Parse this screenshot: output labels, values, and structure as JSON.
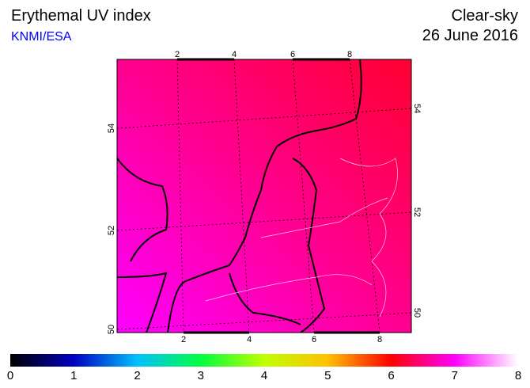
{
  "header": {
    "title": "Erythemal UV index",
    "source": "KNMI/ESA",
    "condition": "Clear-sky",
    "date": "26 June 2016"
  },
  "map": {
    "top_ticks": [
      2,
      4,
      6,
      8
    ],
    "bottom_ticks": [
      2,
      4,
      6,
      8
    ],
    "left_ticks": [
      54,
      52,
      50
    ],
    "right_ticks": [
      54,
      52,
      50
    ]
  },
  "colorbar": {
    "labels": [
      0,
      1,
      2,
      3,
      4,
      5,
      6,
      7,
      8
    ]
  }
}
